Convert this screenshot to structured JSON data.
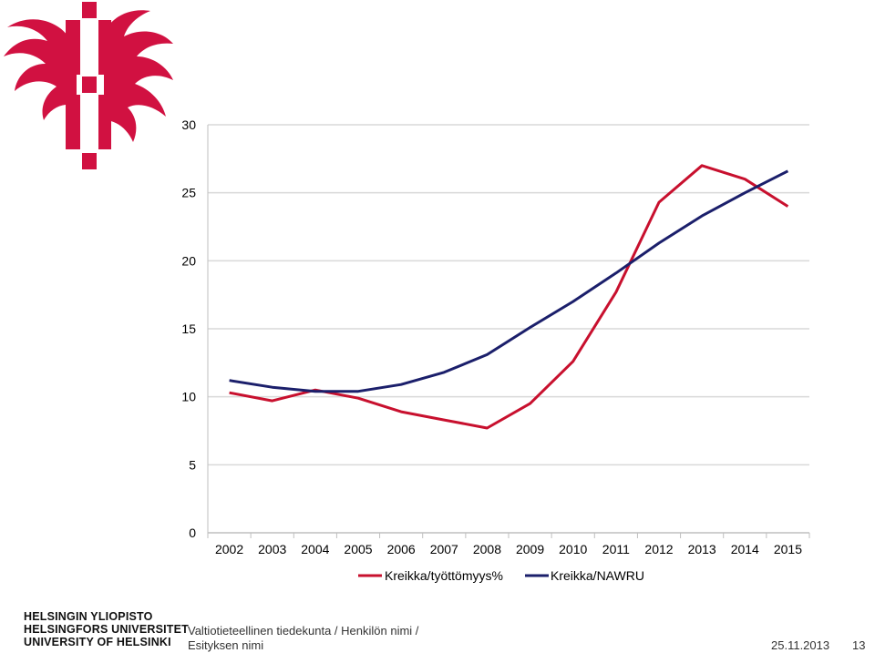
{
  "footer": {
    "university_lines": [
      "HELSINGIN YLIOPISTO",
      "HELSINGFORS UNIVERSITET",
      "UNIVERSITY OF HELSINKI"
    ],
    "faculty_line1": "Valtiotieteellinen tiedekunta / Henkilön nimi /",
    "faculty_line2": "Esityksen nimi",
    "date": "25.11.2013",
    "page_number": "13"
  },
  "colors": {
    "brand_red": "#d11141",
    "series_unemployment": "#c8102e",
    "series_nawru": "#1b1f6b",
    "gridline": "#d9d9d9"
  },
  "chart_data": {
    "type": "line",
    "x": [
      "2002",
      "2003",
      "2004",
      "2005",
      "2006",
      "2007",
      "2008",
      "2009",
      "2010",
      "2011",
      "2012",
      "2013",
      "2014",
      "2015"
    ],
    "series": [
      {
        "name": "Kreikka/työttömyys%",
        "values": [
          10.3,
          9.7,
          10.5,
          9.9,
          8.9,
          8.3,
          7.7,
          9.5,
          12.6,
          17.7,
          24.3,
          27.0,
          26.0,
          24.0
        ]
      },
      {
        "name": "Kreikka/NAWRU",
        "values": [
          11.2,
          10.7,
          10.4,
          10.4,
          10.9,
          11.8,
          13.1,
          15.1,
          17.0,
          19.1,
          21.3,
          23.3,
          25.0,
          26.6
        ]
      }
    ],
    "y_ticks": [
      0,
      5,
      10,
      15,
      20,
      25,
      30
    ],
    "ylim": [
      0,
      30
    ],
    "grid": true,
    "legend_position": "bottom"
  }
}
